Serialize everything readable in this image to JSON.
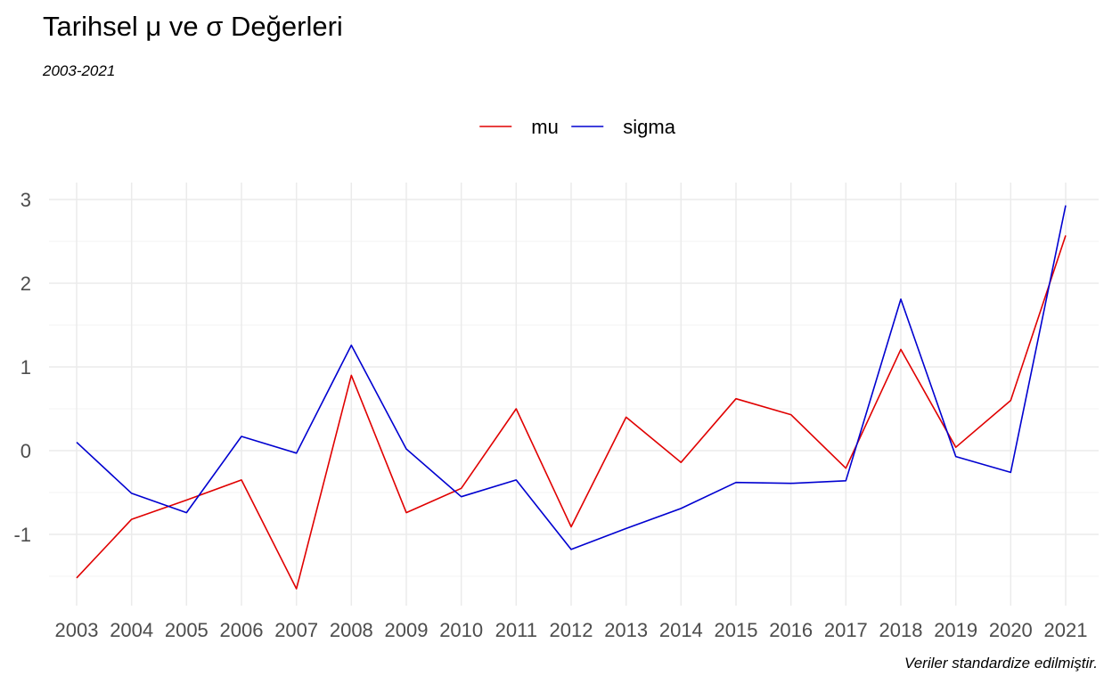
{
  "chart_data": {
    "type": "line",
    "title": "Tarihsel  μ ve σ Değerleri",
    "subtitle": "2003-2021",
    "caption": "Veriler standardize edilmiştir.",
    "xlabel": "",
    "ylabel": "",
    "x": [
      2003,
      2004,
      2005,
      2006,
      2007,
      2008,
      2009,
      2010,
      2011,
      2012,
      2013,
      2014,
      2015,
      2016,
      2017,
      2018,
      2019,
      2020,
      2021
    ],
    "ylim": [
      -1.8,
      3.2
    ],
    "yticks": [
      -1,
      0,
      1,
      2,
      3
    ],
    "grid": true,
    "legend_position": "top",
    "series": [
      {
        "name": "mu",
        "color": "#e00000",
        "values": [
          -1.52,
          -0.82,
          -0.59,
          -0.35,
          -1.65,
          0.9,
          -0.74,
          -0.45,
          0.5,
          -0.91,
          0.4,
          -0.14,
          0.62,
          0.43,
          -0.21,
          1.21,
          0.04,
          0.6,
          2.57
        ]
      },
      {
        "name": "sigma",
        "color": "#0000d0",
        "values": [
          0.1,
          -0.51,
          -0.74,
          0.17,
          -0.03,
          1.26,
          0.02,
          -0.55,
          -0.35,
          -1.18,
          -0.93,
          -0.69,
          -0.38,
          -0.39,
          -0.36,
          1.81,
          -0.07,
          -0.26,
          2.93
        ]
      }
    ]
  }
}
